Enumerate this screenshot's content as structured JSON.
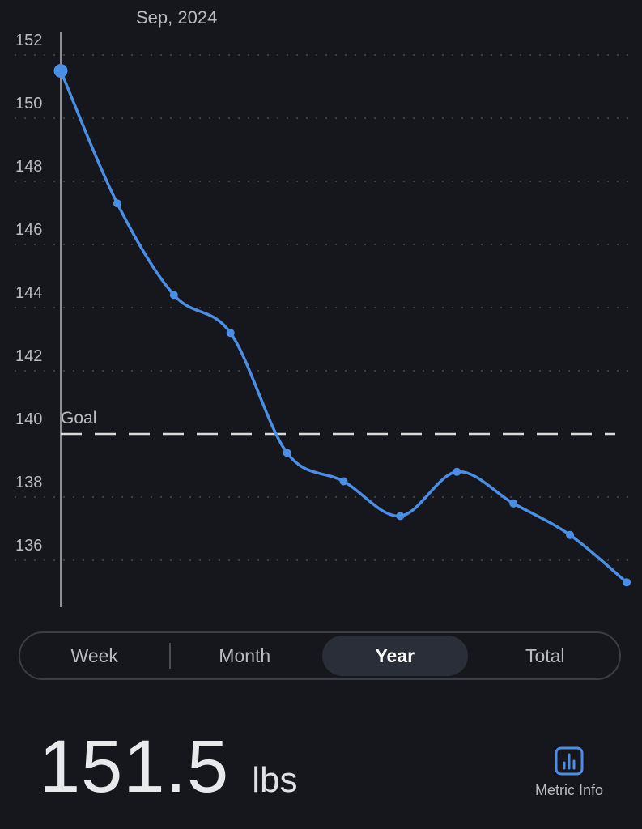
{
  "chart_data": {
    "type": "line",
    "period_label": "Sep, 2024",
    "ylim": [
      134.5,
      152.5
    ],
    "yticks": [
      136,
      138,
      140,
      142,
      144,
      146,
      148,
      150,
      152
    ],
    "grid": true,
    "goal": {
      "label": "Goal",
      "value": 140
    },
    "series": [
      {
        "values": [
          151.5,
          147.3,
          144.4,
          143.2,
          139.4,
          138.5,
          137.4,
          138.8,
          137.8,
          136.8,
          135.3
        ]
      }
    ],
    "line_color": "#4a8ee6"
  },
  "range_selector": {
    "options": [
      "Week",
      "Month",
      "Year",
      "Total"
    ],
    "selected": "Year"
  },
  "current": {
    "value": "151.5",
    "unit": "lbs"
  },
  "metric_info": {
    "label": "Metric Info",
    "icon": "bar-chart-icon"
  }
}
